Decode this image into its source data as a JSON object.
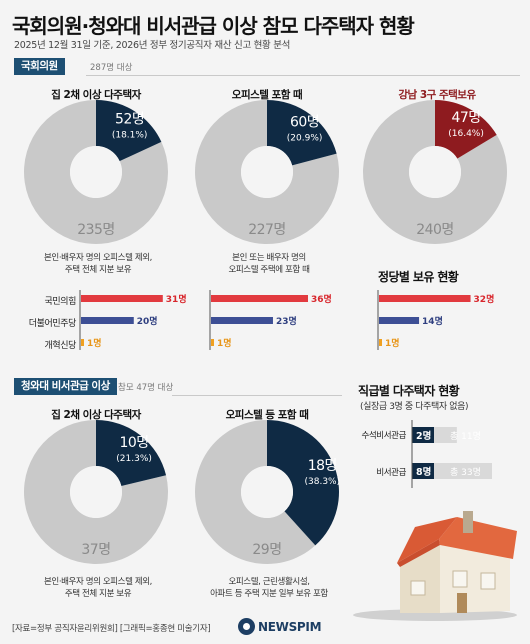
{
  "header": {
    "title": "국회의원·청와대 비서관급 이상 참모 다주택자 현황",
    "subtitle": "2025년 12월 31일 기준, 2026년 정부 정기공직자 재산 신고 현황 분석"
  },
  "assembly": {
    "tag": "국회의원",
    "note": "287명 대상",
    "charts": [
      {
        "title": "집 2채 이상 다주택자",
        "value_label": "52명",
        "pct_label": "(18.1%)",
        "rest_label": "235명",
        "note_lines": [
          "본인·배우자 명의 오피스텔 제외,",
          "주택 전체 지분 보유"
        ]
      },
      {
        "title": "오피스텔 포함 때",
        "value_label": "60명",
        "pct_label": "(20.9%)",
        "rest_label": "227명",
        "note_lines": [
          "본인 또는 배우자 명의",
          "오피스텔 주택에 포함 때"
        ]
      },
      {
        "title": "강남 3구 주택보유",
        "value_label": "47명",
        "pct_label": "(16.4%)",
        "rest_label": "240명"
      }
    ],
    "party_heading": "정당별 보유 현황",
    "parties": [
      "국민의힘",
      "더불어민주당",
      "개혁신당"
    ],
    "party_bars": [
      {
        "labels": [
          "31명",
          "20명",
          "1명"
        ]
      },
      {
        "labels": [
          "36명",
          "23명",
          "1명"
        ]
      },
      {
        "labels": [
          "32명",
          "14명",
          "1명"
        ]
      }
    ]
  },
  "bluehouse": {
    "tag": "청와대 비서관급 이상",
    "note": "참모 47명 대상",
    "charts": [
      {
        "title": "집 2채 이상 다주택자",
        "value_label": "10명",
        "pct_label": "(21.3%)",
        "rest_label": "37명",
        "note_lines": [
          "본인·배우자 명의 오피스텔 제외,",
          "주택 전체 지분 보유"
        ]
      },
      {
        "title": "오피스텔 등 포함 때",
        "value_label": "18명",
        "pct_label": "(38.3%)",
        "rest_label": "29명",
        "note_lines": [
          "오피스텔, 근린생활시설,",
          "아파트 등 주택 지분 일부 보유 포함"
        ]
      }
    ],
    "rank_heading": "직급별 다주택자 현황",
    "rank_subheading": "(실장급 3명 중 다주택자 없음)",
    "ranks": [
      {
        "label": "수석비서관급",
        "value_label": "2명",
        "total_label": "총 11명"
      },
      {
        "label": "비서관급",
        "value_label": "8명",
        "total_label": "총 33명"
      }
    ]
  },
  "footer": {
    "source": "[자료=정부 공직자윤리위원회] [그래픽=홍종현 미술기자]",
    "logo": "NEWSPIM"
  },
  "colors": {
    "navy": "#0f2a44",
    "red": "#8e1b1f",
    "gray": "#c9c9c9",
    "bar_red": "#e23a3f",
    "bar_blue": "#3d4f95",
    "bar_orange": "#f0a020",
    "tag": "#1d4f73"
  },
  "chart_data": [
    {
      "type": "pie",
      "title": "집 2채 이상 다주택자",
      "categories": [
        "다주택자",
        "나머지"
      ],
      "values": [
        52,
        235
      ]
    },
    {
      "type": "pie",
      "title": "오피스텔 포함 때",
      "categories": [
        "다주택자",
        "나머지"
      ],
      "values": [
        60,
        227
      ]
    },
    {
      "type": "pie",
      "title": "강남 3구 주택보유",
      "categories": [
        "보유",
        "나머지"
      ],
      "values": [
        47,
        240
      ]
    },
    {
      "type": "bar",
      "title": "정당별 보유 현황",
      "categories": [
        "국민의힘",
        "더불어민주당",
        "개혁신당"
      ],
      "series": [
        {
          "values": [
            31,
            20,
            1
          ]
        },
        {
          "values": [
            36,
            23,
            1
          ]
        },
        {
          "values": [
            32,
            14,
            1
          ]
        }
      ]
    },
    {
      "type": "pie",
      "title": "집 2채 이상 다주택자",
      "categories": [
        "다주택자",
        "나머지"
      ],
      "values": [
        10,
        37
      ]
    },
    {
      "type": "pie",
      "title": "오피스텔 등 포함 때",
      "categories": [
        "다주택자",
        "나머지"
      ],
      "values": [
        18,
        29
      ]
    },
    {
      "type": "bar",
      "title": "직급별 다주택자 현황",
      "categories": [
        "수석비서관급",
        "비서관급"
      ],
      "series": [
        {
          "values": [
            2,
            8
          ]
        },
        {
          "values": [
            11,
            33
          ]
        }
      ]
    }
  ]
}
